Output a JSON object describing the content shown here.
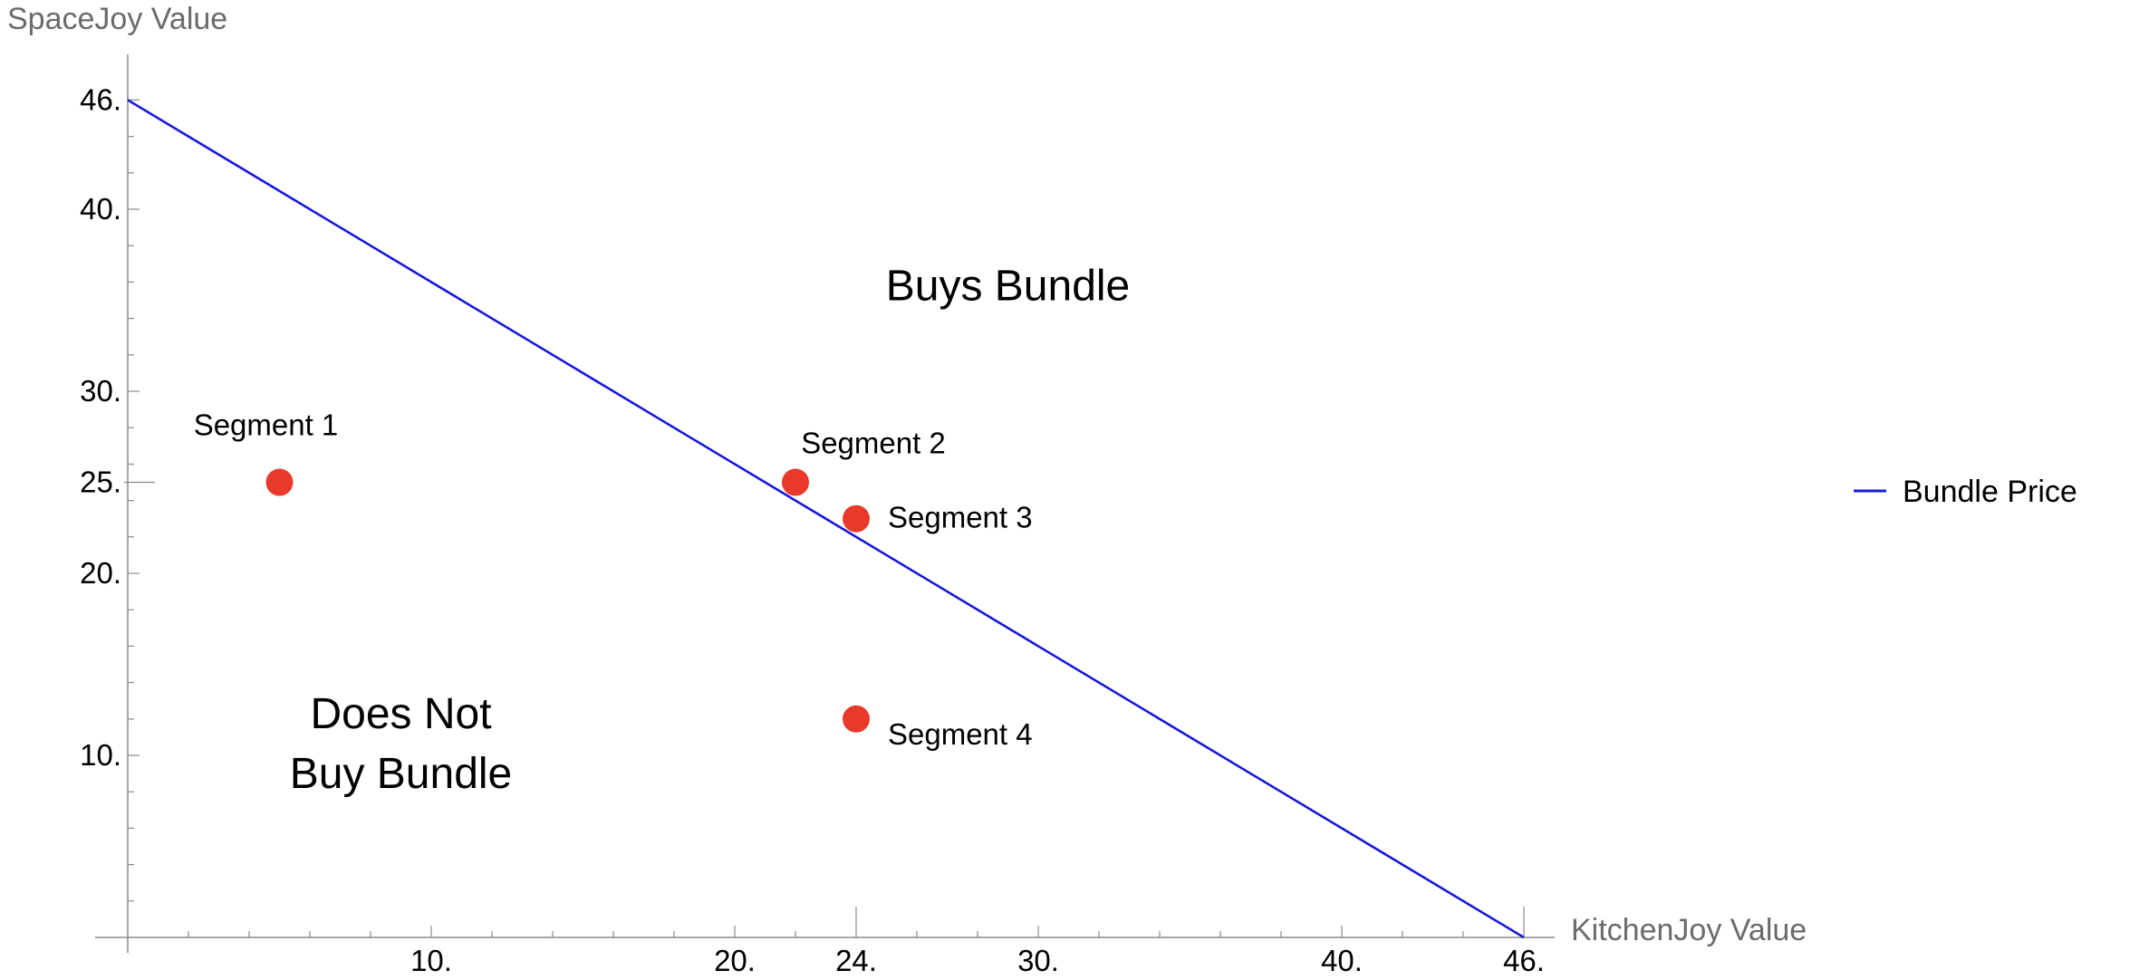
{
  "chart_data": {
    "type": "scatter",
    "xlabel": "KitchenJoy Value",
    "ylabel": "SpaceJoy Value",
    "xlim": [
      0,
      47
    ],
    "ylim": [
      0,
      47
    ],
    "x_ticks": [
      10,
      20,
      24,
      30,
      40,
      46
    ],
    "x_tick_labels": [
      "10.",
      "20.",
      "24.",
      "30.",
      "40.",
      "46."
    ],
    "y_ticks": [
      10,
      20,
      25,
      30,
      40,
      46
    ],
    "y_tick_labels": [
      "10.",
      "20.",
      "25.",
      "30.",
      "40.",
      "46."
    ],
    "grid": false,
    "series": [
      {
        "name": "Bundle Price",
        "type": "line",
        "color": "#1a1adb",
        "points": [
          [
            0,
            46
          ],
          [
            46,
            0
          ]
        ]
      },
      {
        "type": "scatter",
        "color": "#e8392a",
        "points": [
          {
            "x": 5,
            "y": 25,
            "label": "Segment 1"
          },
          {
            "x": 22,
            "y": 25,
            "label": "Segment 2"
          },
          {
            "x": 24,
            "y": 23,
            "label": "Segment 3"
          },
          {
            "x": 24,
            "y": 12,
            "label": "Segment 4"
          }
        ]
      }
    ],
    "annotations": [
      {
        "text": "Buys Bundle",
        "x": 29,
        "y": 35
      },
      {
        "text": "Does Not",
        "x": 9,
        "y": 11.5
      },
      {
        "text": "Buy Bundle",
        "x": 9,
        "y": 8.2
      }
    ],
    "legend": {
      "position": "right",
      "entries": [
        "Bundle Price"
      ]
    }
  }
}
